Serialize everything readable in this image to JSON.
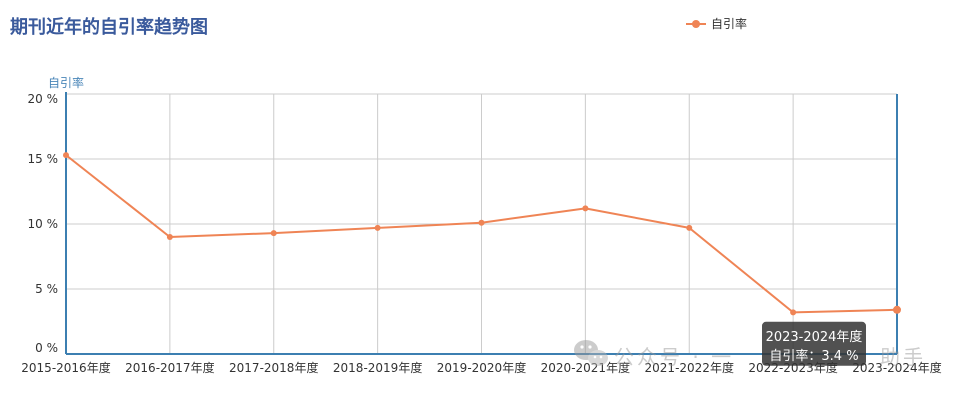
{
  "chart_data": {
    "type": "line",
    "title": "期刊近年的自引率趋势图",
    "xlabel": "",
    "ylabel": "自引率",
    "categories": [
      "2015-2016年度",
      "2016-2017年度",
      "2017-2018年度",
      "2018-2019年度",
      "2019-2020年度",
      "2020-2021年度",
      "2021-2022年度",
      "2022-2023年度",
      "2023-2024年度"
    ],
    "series": [
      {
        "name": "自引率",
        "values": [
          15.3,
          9.0,
          9.3,
          9.7,
          10.1,
          11.2,
          9.7,
          3.2,
          3.4
        ],
        "color": "#ef8455"
      }
    ],
    "ylim": [
      0,
      20
    ],
    "yticks": [
      0,
      5,
      10,
      15,
      20
    ],
    "ytick_labels": [
      "0 %",
      "5 %",
      "10 %",
      "15 %",
      "20 %"
    ],
    "grid": true,
    "legend": "top-right",
    "colors": {
      "axis": "#3c7fb1",
      "grid": "#cccccc"
    }
  },
  "tooltip": {
    "title": "2023-2024年度",
    "text": "自引率：3.4 %"
  },
  "watermark": {
    "icon": "wechat-icon",
    "text_left": "公众号 · 一",
    "text_right": "助手"
  }
}
